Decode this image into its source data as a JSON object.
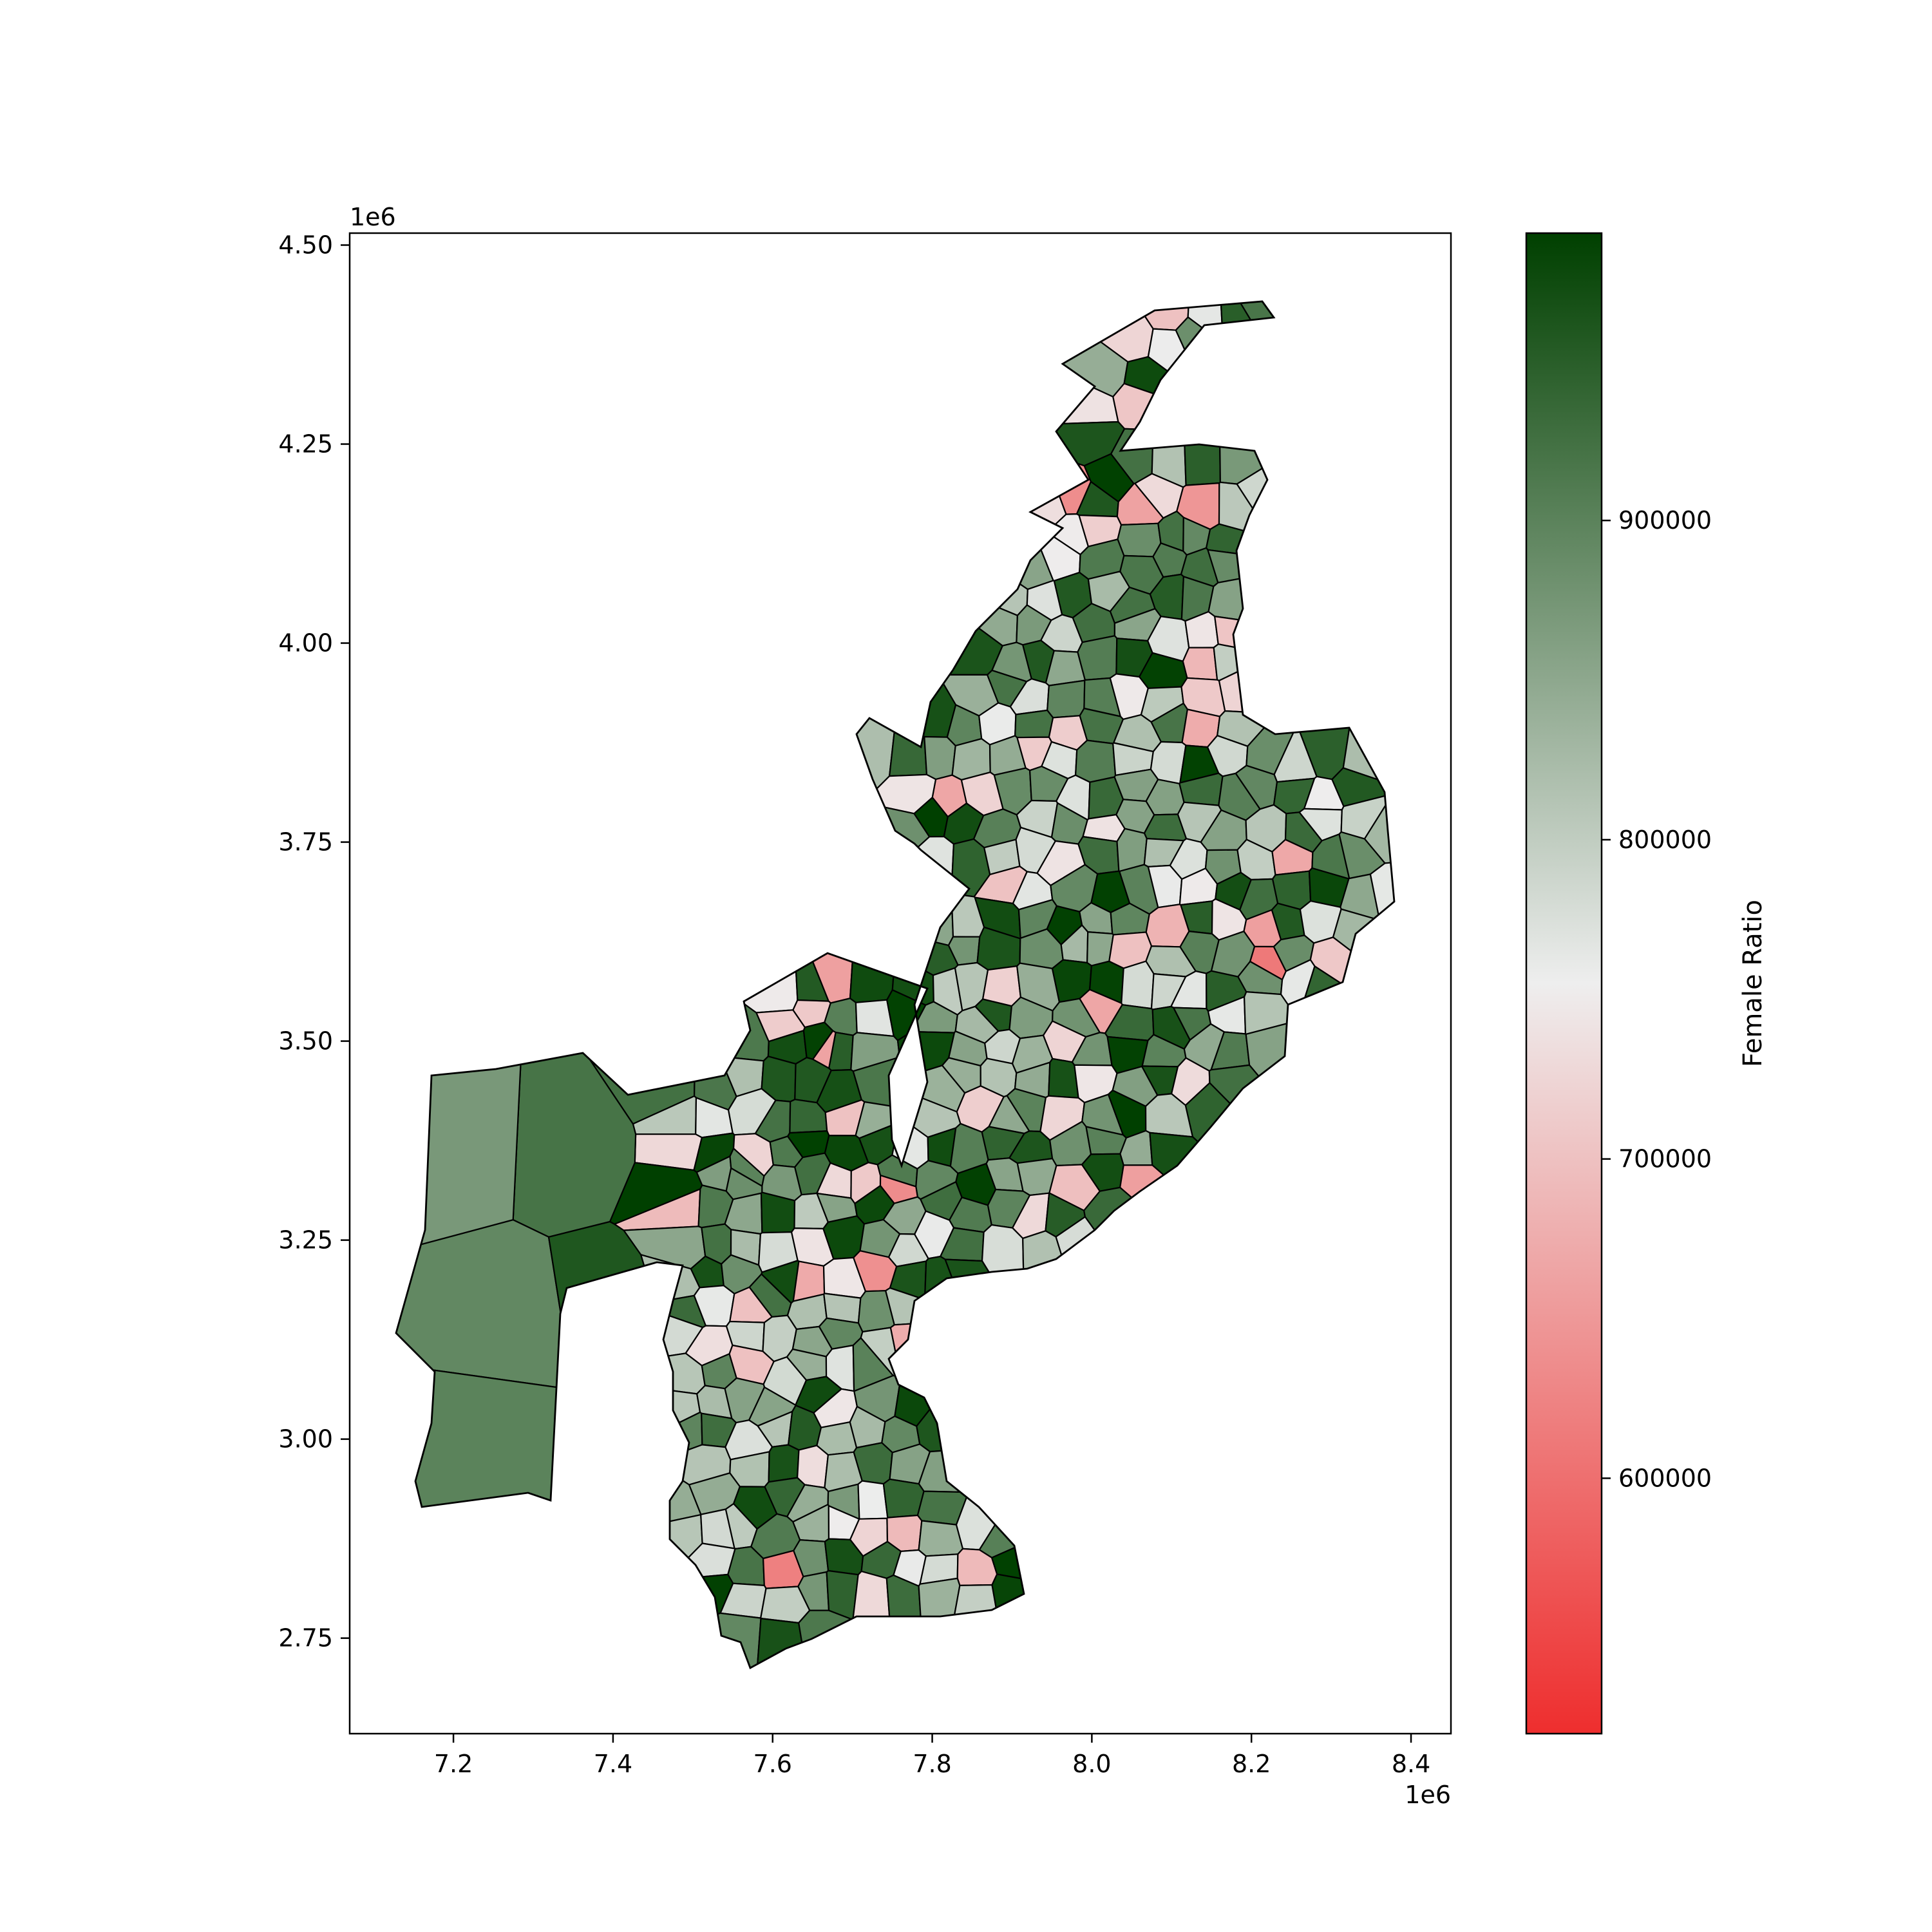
{
  "chart_data": {
    "type": "choropleth",
    "x_axis": {
      "ticks": [
        "7.2",
        "7.4",
        "7.6",
        "7.8",
        "8.0",
        "8.2",
        "8.4"
      ],
      "tick_values": [
        7.2,
        7.4,
        7.6,
        7.8,
        8.0,
        8.2,
        8.4
      ],
      "offset": "1e6",
      "range": [
        7.07,
        8.45
      ]
    },
    "y_axis": {
      "ticks": [
        "2.75",
        "3.00",
        "3.25",
        "3.50",
        "3.75",
        "4.00",
        "4.25",
        "4.50"
      ],
      "tick_values": [
        2.75,
        3.0,
        3.25,
        3.5,
        3.75,
        4.0,
        4.25,
        4.5
      ],
      "offset": "1e6",
      "range": [
        2.63,
        4.515
      ]
    },
    "colorbar": {
      "label": "Female Ratio",
      "ticks": [
        "600000",
        "700000",
        "800000",
        "900000"
      ],
      "tick_values": [
        600000,
        700000,
        800000,
        900000
      ],
      "range": [
        520000,
        990000
      ],
      "colors": [
        "#ee2e2e",
        "#eeeeee",
        "#004000"
      ]
    },
    "grid": false
  }
}
